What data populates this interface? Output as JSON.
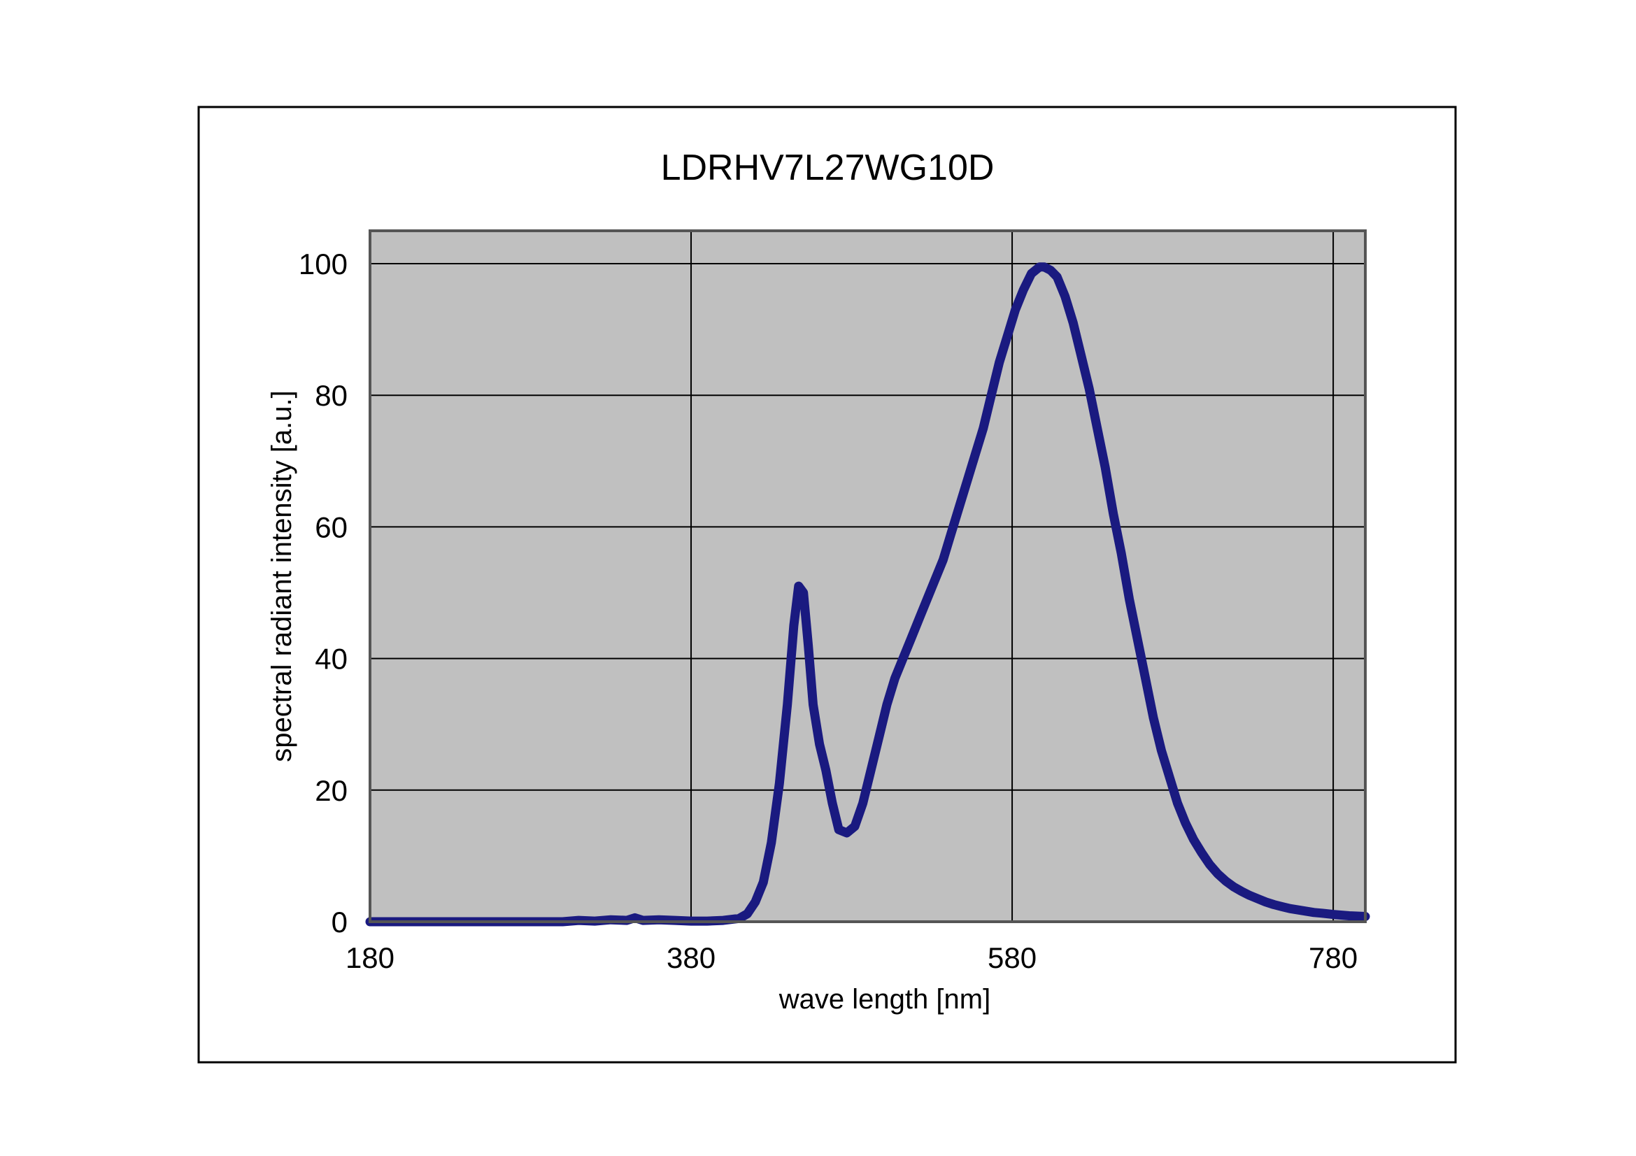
{
  "chart_data": {
    "type": "line",
    "title": "LDRHV7L27WG10D",
    "xlabel": "wave length [nm]",
    "ylabel": "spectral radiant intensity [a.u.]",
    "xlim": [
      180,
      800
    ],
    "ylim": [
      0,
      105
    ],
    "x_ticks": [
      180,
      380,
      580,
      780
    ],
    "y_ticks": [
      0,
      20,
      40,
      60,
      80,
      100
    ],
    "grid": true,
    "legend": "none",
    "colors": {
      "plot_background": "#c0c0c0",
      "series_line": "#1a1a80",
      "grid": "#000000",
      "frame": "#000000"
    },
    "series": [
      {
        "values": [
          [
            180,
            0
          ],
          [
            250,
            0
          ],
          [
            300,
            0
          ],
          [
            310,
            0.2
          ],
          [
            320,
            0.1
          ],
          [
            330,
            0.3
          ],
          [
            340,
            0.2
          ],
          [
            345,
            0.6
          ],
          [
            350,
            0.2
          ],
          [
            360,
            0.3
          ],
          [
            370,
            0.2
          ],
          [
            380,
            0.1
          ],
          [
            390,
            0.1
          ],
          [
            400,
            0.2
          ],
          [
            410,
            0.5
          ],
          [
            415,
            1.2
          ],
          [
            420,
            3
          ],
          [
            425,
            6
          ],
          [
            430,
            12
          ],
          [
            435,
            21
          ],
          [
            440,
            33
          ],
          [
            444,
            45
          ],
          [
            447,
            51
          ],
          [
            450,
            50
          ],
          [
            453,
            42
          ],
          [
            456,
            33
          ],
          [
            460,
            27
          ],
          [
            464,
            23
          ],
          [
            468,
            18
          ],
          [
            472,
            14
          ],
          [
            477,
            13.5
          ],
          [
            482,
            14.5
          ],
          [
            487,
            18
          ],
          [
            492,
            23
          ],
          [
            497,
            28
          ],
          [
            502,
            33
          ],
          [
            507,
            37
          ],
          [
            512,
            40
          ],
          [
            517,
            43
          ],
          [
            522,
            46
          ],
          [
            527,
            49
          ],
          [
            532,
            52
          ],
          [
            537,
            55
          ],
          [
            542,
            59
          ],
          [
            547,
            63
          ],
          [
            552,
            67
          ],
          [
            557,
            71
          ],
          [
            562,
            75
          ],
          [
            567,
            80
          ],
          [
            572,
            85
          ],
          [
            577,
            89
          ],
          [
            582,
            93
          ],
          [
            587,
            96
          ],
          [
            592,
            98.5
          ],
          [
            597,
            99.5
          ],
          [
            600,
            99.5
          ],
          [
            604,
            99
          ],
          [
            608,
            98
          ],
          [
            613,
            95
          ],
          [
            618,
            91
          ],
          [
            623,
            86
          ],
          [
            628,
            81
          ],
          [
            633,
            75
          ],
          [
            638,
            69
          ],
          [
            643,
            62
          ],
          [
            648,
            56
          ],
          [
            653,
            49
          ],
          [
            658,
            43
          ],
          [
            663,
            37
          ],
          [
            668,
            31
          ],
          [
            673,
            26
          ],
          [
            678,
            22
          ],
          [
            683,
            18
          ],
          [
            688,
            15
          ],
          [
            693,
            12.5
          ],
          [
            698,
            10.5
          ],
          [
            703,
            8.7
          ],
          [
            708,
            7.3
          ],
          [
            713,
            6.2
          ],
          [
            718,
            5.3
          ],
          [
            723,
            4.6
          ],
          [
            728,
            4
          ],
          [
            733,
            3.5
          ],
          [
            738,
            3
          ],
          [
            743,
            2.6
          ],
          [
            748,
            2.3
          ],
          [
            753,
            2
          ],
          [
            758,
            1.8
          ],
          [
            763,
            1.6
          ],
          [
            768,
            1.4
          ],
          [
            773,
            1.3
          ],
          [
            780,
            1.1
          ],
          [
            790,
            0.9
          ],
          [
            800,
            0.8
          ]
        ]
      }
    ]
  }
}
